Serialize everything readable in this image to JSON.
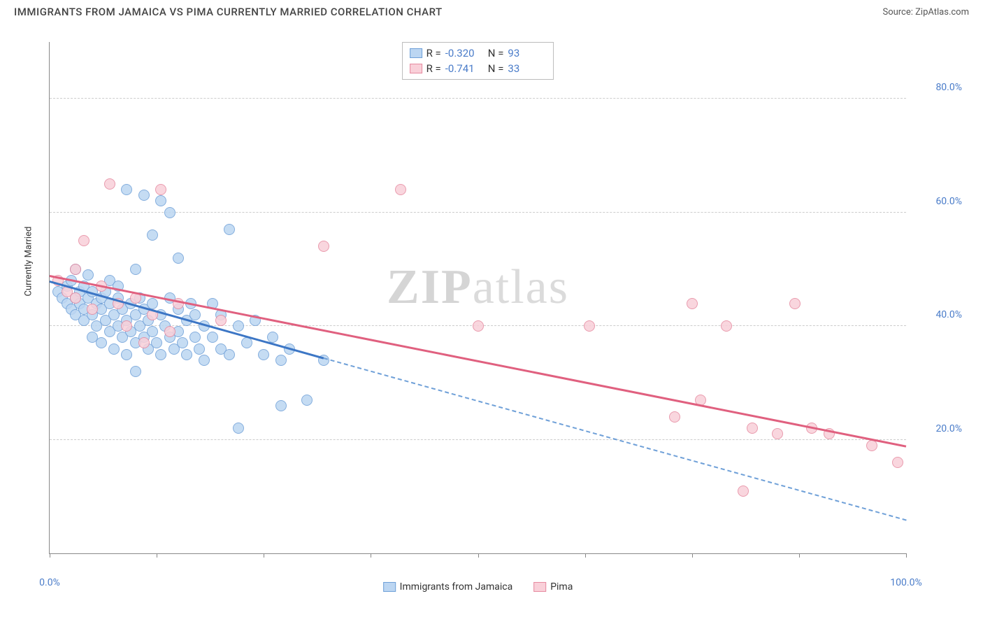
{
  "title": "IMMIGRANTS FROM JAMAICA VS PIMA CURRENTLY MARRIED CORRELATION CHART",
  "source": "Source: ZipAtlas.com",
  "watermark_a": "ZIP",
  "watermark_b": "atlas",
  "chart": {
    "type": "scatter",
    "xlim": [
      0,
      100
    ],
    "ylim": [
      0,
      90
    ],
    "y_ticks": [
      20,
      40,
      60,
      80
    ],
    "y_tick_labels": [
      "20.0%",
      "40.0%",
      "60.0%",
      "80.0%"
    ],
    "x_ticks": [
      0,
      12.5,
      25,
      37.5,
      50,
      62.5,
      75,
      87.5,
      100
    ],
    "x_tick_labels_shown": {
      "0": "0.0%",
      "100": "100.0%"
    },
    "y_axis_title": "Currently Married",
    "grid_color": "#cccccc",
    "background_color": "#ffffff",
    "point_radius": 8,
    "point_stroke_width": 1.2,
    "series": [
      {
        "name": "Immigrants from Jamaica",
        "fill": "#bcd6f2",
        "stroke": "#6fa0d8",
        "R": "-0.320",
        "N": "93",
        "trend": {
          "x1": 0,
          "y1": 48,
          "x2_solid": 32,
          "y2_solid": 34.5,
          "x2": 100,
          "y2": 6,
          "solid_color": "#3c76c5",
          "dash_color": "#6fa0d8"
        },
        "points": [
          [
            1,
            46
          ],
          [
            1.5,
            45
          ],
          [
            2,
            44
          ],
          [
            2,
            47
          ],
          [
            2.5,
            43
          ],
          [
            2.5,
            48
          ],
          [
            3,
            45
          ],
          [
            3,
            42
          ],
          [
            3,
            50
          ],
          [
            3.5,
            46
          ],
          [
            3.5,
            44
          ],
          [
            4,
            43
          ],
          [
            4,
            47
          ],
          [
            4,
            41
          ],
          [
            4.5,
            45
          ],
          [
            4.5,
            49
          ],
          [
            5,
            42
          ],
          [
            5,
            46
          ],
          [
            5,
            38
          ],
          [
            5.5,
            44
          ],
          [
            5.5,
            40
          ],
          [
            6,
            45
          ],
          [
            6,
            43
          ],
          [
            6,
            37
          ],
          [
            6.5,
            41
          ],
          [
            6.5,
            46
          ],
          [
            7,
            44
          ],
          [
            7,
            39
          ],
          [
            7,
            48
          ],
          [
            7.5,
            42
          ],
          [
            7.5,
            36
          ],
          [
            8,
            45
          ],
          [
            8,
            40
          ],
          [
            8,
            47
          ],
          [
            8.5,
            38
          ],
          [
            8.5,
            43
          ],
          [
            9,
            41
          ],
          [
            9,
            35
          ],
          [
            9,
            64
          ],
          [
            9.5,
            44
          ],
          [
            9.5,
            39
          ],
          [
            10,
            42
          ],
          [
            10,
            37
          ],
          [
            10,
            50
          ],
          [
            10.5,
            40
          ],
          [
            10.5,
            45
          ],
          [
            11,
            38
          ],
          [
            11,
            43
          ],
          [
            11,
            63
          ],
          [
            11.5,
            36
          ],
          [
            11.5,
            41
          ],
          [
            12,
            44
          ],
          [
            12,
            39
          ],
          [
            12,
            56
          ],
          [
            12.5,
            37
          ],
          [
            13,
            42
          ],
          [
            13,
            35
          ],
          [
            13,
            62
          ],
          [
            13.5,
            40
          ],
          [
            14,
            38
          ],
          [
            14,
            45
          ],
          [
            14,
            60
          ],
          [
            14.5,
            36
          ],
          [
            15,
            43
          ],
          [
            15,
            39
          ],
          [
            15.5,
            37
          ],
          [
            16,
            41
          ],
          [
            16,
            35
          ],
          [
            16.5,
            44
          ],
          [
            17,
            38
          ],
          [
            17,
            42
          ],
          [
            17.5,
            36
          ],
          [
            18,
            40
          ],
          [
            18,
            34
          ],
          [
            19,
            38
          ],
          [
            19,
            44
          ],
          [
            20,
            36
          ],
          [
            20,
            42
          ],
          [
            21,
            35
          ],
          [
            21,
            57
          ],
          [
            22,
            40
          ],
          [
            23,
            37
          ],
          [
            24,
            41
          ],
          [
            25,
            35
          ],
          [
            26,
            38
          ],
          [
            27,
            34
          ],
          [
            28,
            36
          ],
          [
            10,
            32
          ],
          [
            15,
            52
          ],
          [
            27,
            26
          ],
          [
            22,
            22
          ],
          [
            30,
            27
          ],
          [
            32,
            34
          ]
        ]
      },
      {
        "name": "Pima",
        "fill": "#f9d0d9",
        "stroke": "#e68aa0",
        "R": "-0.741",
        "N": "33",
        "trend": {
          "x1": 0,
          "y1": 49,
          "x2_solid": 100,
          "y2_solid": 19,
          "x2": 100,
          "y2": 19,
          "solid_color": "#e0607f",
          "dash_color": "#e68aa0"
        },
        "points": [
          [
            1,
            48
          ],
          [
            2,
            46
          ],
          [
            3,
            50
          ],
          [
            3,
            45
          ],
          [
            4,
            55
          ],
          [
            5,
            43
          ],
          [
            6,
            47
          ],
          [
            7,
            65
          ],
          [
            8,
            44
          ],
          [
            9,
            40
          ],
          [
            10,
            45
          ],
          [
            11,
            37
          ],
          [
            12,
            42
          ],
          [
            13,
            64
          ],
          [
            14,
            39
          ],
          [
            15,
            44
          ],
          [
            20,
            41
          ],
          [
            32,
            54
          ],
          [
            41,
            64
          ],
          [
            50,
            40
          ],
          [
            63,
            40
          ],
          [
            73,
            24
          ],
          [
            75,
            44
          ],
          [
            76,
            27
          ],
          [
            79,
            40
          ],
          [
            81,
            11
          ],
          [
            82,
            22
          ],
          [
            85,
            21
          ],
          [
            87,
            44
          ],
          [
            89,
            22
          ],
          [
            91,
            21
          ],
          [
            96,
            19
          ],
          [
            99,
            16
          ]
        ]
      }
    ],
    "legend": {
      "items": [
        "Immigrants from Jamaica",
        "Pima"
      ]
    }
  }
}
